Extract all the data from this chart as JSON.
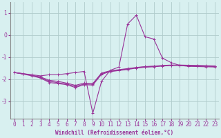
{
  "xlabel": "Windchill (Refroidissement éolien,°C)",
  "bg_color": "#d8f0f0",
  "grid_color": "#b0cccc",
  "line_color": "#993399",
  "spine_color": "#888888",
  "xlim": [
    -0.5,
    23.5
  ],
  "ylim": [
    -3.8,
    1.5
  ],
  "yticks": [
    1,
    0,
    -1,
    -2,
    -3
  ],
  "xticks": [
    0,
    1,
    2,
    3,
    4,
    5,
    6,
    7,
    8,
    9,
    10,
    11,
    12,
    13,
    14,
    15,
    16,
    17,
    18,
    19,
    20,
    21,
    22,
    23
  ],
  "curves": [
    [
      -1.7,
      -1.75,
      -1.8,
      -1.85,
      -1.8,
      -1.8,
      -1.75,
      -1.7,
      -1.65,
      -3.55,
      -2.1,
      -1.6,
      -1.45,
      0.5,
      0.9,
      -0.08,
      -0.18,
      -1.05,
      -1.25,
      -1.38,
      -1.42,
      -1.43,
      -1.44,
      -1.45
    ],
    [
      -1.7,
      -1.75,
      -1.82,
      -1.9,
      -2.05,
      -2.1,
      -2.18,
      -2.28,
      -2.18,
      -2.2,
      -1.72,
      -1.62,
      -1.57,
      -1.52,
      -1.47,
      -1.43,
      -1.41,
      -1.38,
      -1.36,
      -1.36,
      -1.37,
      -1.38,
      -1.39,
      -1.4
    ],
    [
      -1.7,
      -1.76,
      -1.83,
      -1.93,
      -2.1,
      -2.16,
      -2.22,
      -2.33,
      -2.22,
      -2.23,
      -1.75,
      -1.64,
      -1.59,
      -1.54,
      -1.48,
      -1.44,
      -1.42,
      -1.39,
      -1.37,
      -1.37,
      -1.38,
      -1.39,
      -1.4,
      -1.41
    ],
    [
      -1.7,
      -1.77,
      -1.85,
      -1.95,
      -2.15,
      -2.2,
      -2.25,
      -2.38,
      -2.25,
      -2.27,
      -1.78,
      -1.66,
      -1.61,
      -1.56,
      -1.5,
      -1.46,
      -1.44,
      -1.41,
      -1.38,
      -1.38,
      -1.4,
      -1.41,
      -1.42,
      -1.43
    ]
  ],
  "marker": "+",
  "markersize": 3.5,
  "linewidth": 0.8,
  "tick_fontsize": 5.5,
  "xlabel_fontsize": 5.5
}
